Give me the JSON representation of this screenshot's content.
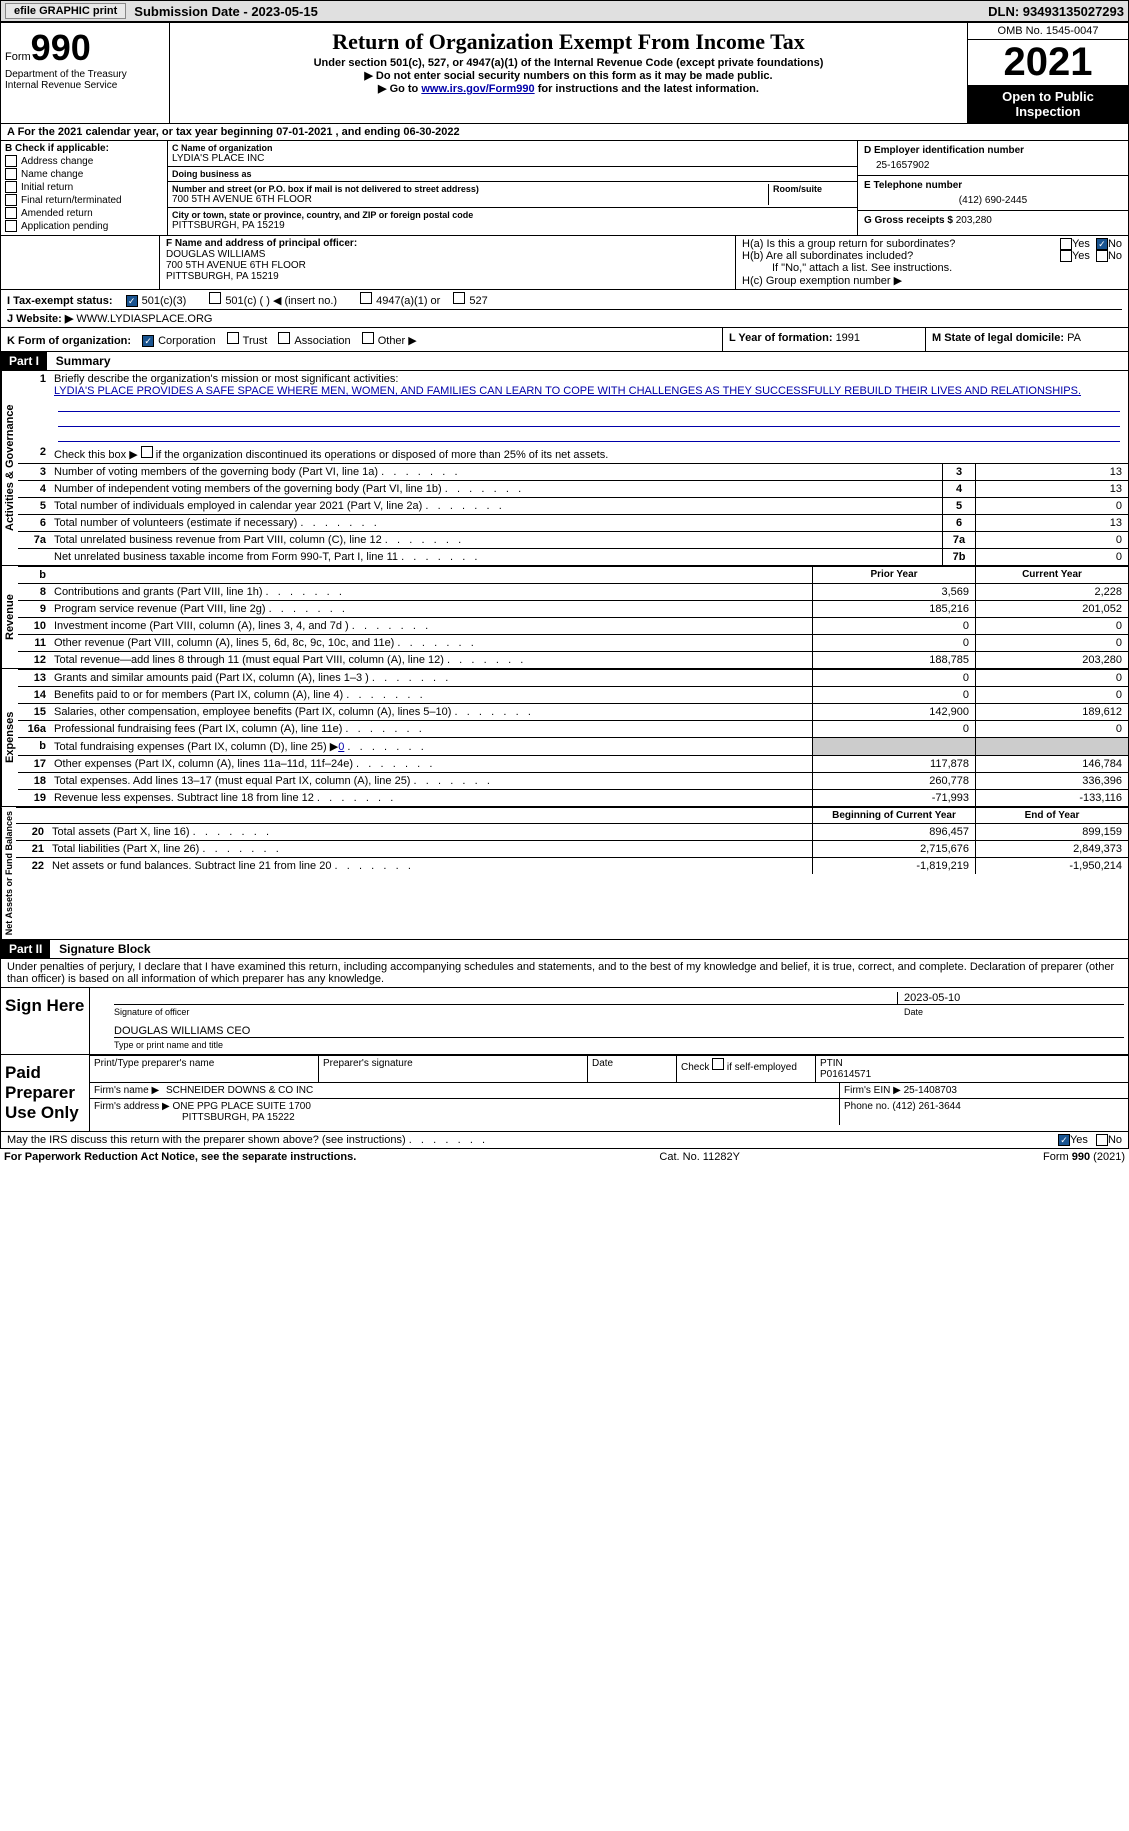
{
  "top": {
    "efile": "efile GRAPHIC print",
    "submission": "Submission Date - 2023-05-15",
    "dln": "DLN: 93493135027293"
  },
  "header": {
    "formWord": "Form",
    "formNum": "990",
    "title": "Return of Organization Exempt From Income Tax",
    "subtitle": "Under section 501(c), 527, or 4947(a)(1) of the Internal Revenue Code (except private foundations)",
    "note1": "▶ Do not enter social security numbers on this form as it may be made public.",
    "note2_pre": "▶ Go to ",
    "note2_link": "www.irs.gov/Form990",
    "note2_post": " for instructions and the latest information.",
    "dept": "Department of the Treasury",
    "irs": "Internal Revenue Service",
    "omb": "OMB No. 1545-0047",
    "year": "2021",
    "openPublic": "Open to Public Inspection"
  },
  "lineA": "A For the 2021 calendar year, or tax year beginning 07-01-2021   , and ending 06-30-2022",
  "sectionB": {
    "label": "B Check if applicable:",
    "items": [
      "Address change",
      "Name change",
      "Initial return",
      "Final return/terminated",
      "Amended return",
      "Application pending"
    ]
  },
  "sectionC": {
    "nameLabel": "C Name of organization",
    "name": "LYDIA'S PLACE INC",
    "dba": "Doing business as",
    "streetLabel": "Number and street (or P.O. box if mail is not delivered to street address)",
    "street": "700 5TH AVENUE 6TH FLOOR",
    "room": "Room/suite",
    "cityLabel": "City or town, state or province, country, and ZIP or foreign postal code",
    "city": "PITTSBURGH, PA  15219"
  },
  "sectionD": {
    "label": "D Employer identification number",
    "value": "25-1657902"
  },
  "sectionE": {
    "label": "E Telephone number",
    "value": "(412) 690-2445"
  },
  "sectionG": {
    "label": "G Gross receipts $ ",
    "value": "203,280"
  },
  "sectionF": {
    "label": "F Name and address of principal officer:",
    "name": "DOUGLAS WILLIAMS",
    "addr1": "700 5TH AVENUE 6TH FLOOR",
    "addr2": "PITTSBURGH, PA  15219"
  },
  "sectionH": {
    "ha": "H(a)  Is this a group return for subordinates?",
    "hb": "H(b)  Are all subordinates included?",
    "hbnote": "If \"No,\" attach a list. See instructions.",
    "hc": "H(c)  Group exemption number ▶",
    "yes": "Yes",
    "no": "No"
  },
  "sectionI": {
    "label": "I  Tax-exempt status:",
    "opt1": "501(c)(3)",
    "opt2": "501(c) (   ) ◀ (insert no.)",
    "opt3": "4947(a)(1) or",
    "opt4": "527"
  },
  "sectionJ": {
    "label": "J  Website: ▶",
    "value": "WWW.LYDIASPLACE.ORG"
  },
  "sectionK": {
    "label": "K Form of organization:",
    "opts": [
      "Corporation",
      "Trust",
      "Association",
      "Other ▶"
    ]
  },
  "sectionL": {
    "label": "L Year of formation: ",
    "value": "1991"
  },
  "sectionM": {
    "label": "M State of legal domicile: ",
    "value": "PA"
  },
  "partI": {
    "part": "Part I",
    "title": "Summary",
    "verticalLabels": [
      "Activities & Governance",
      "Revenue",
      "Expenses",
      "Net Assets or Fund Balances"
    ],
    "line1": "Briefly describe the organization's mission or most significant activities:",
    "mission": "LYDIA'S PLACE PROVIDES A SAFE SPACE WHERE MEN, WOMEN, AND FAMILIES CAN LEARN TO COPE WITH CHALLENGES AS THEY SUCCESSFULLY REBUILD THEIR LIVES AND RELATIONSHIPS.",
    "line2": "Check this box ▶        if the organization discontinued its operations or disposed of more than 25% of its net assets.",
    "governance": [
      {
        "n": "3",
        "t": "Number of voting members of the governing body (Part VI, line 1a)",
        "b": "3",
        "v": "13"
      },
      {
        "n": "4",
        "t": "Number of independent voting members of the governing body (Part VI, line 1b)",
        "b": "4",
        "v": "13"
      },
      {
        "n": "5",
        "t": "Total number of individuals employed in calendar year 2021 (Part V, line 2a)",
        "b": "5",
        "v": "0"
      },
      {
        "n": "6",
        "t": "Total number of volunteers (estimate if necessary)",
        "b": "6",
        "v": "13"
      },
      {
        "n": "7a",
        "t": "Total unrelated business revenue from Part VIII, column (C), line 12",
        "b": "7a",
        "v": "0"
      },
      {
        "n": "",
        "t": "Net unrelated business taxable income from Form 990-T, Part I, line 11",
        "b": "7b",
        "v": "0"
      }
    ],
    "colPrior": "Prior Year",
    "colCurrent": "Current Year",
    "revenue": [
      {
        "n": "8",
        "t": "Contributions and grants (Part VIII, line 1h)",
        "p": "3,569",
        "c": "2,228"
      },
      {
        "n": "9",
        "t": "Program service revenue (Part VIII, line 2g)",
        "p": "185,216",
        "c": "201,052"
      },
      {
        "n": "10",
        "t": "Investment income (Part VIII, column (A), lines 3, 4, and 7d )",
        "p": "0",
        "c": "0"
      },
      {
        "n": "11",
        "t": "Other revenue (Part VIII, column (A), lines 5, 6d, 8c, 9c, 10c, and 11e)",
        "p": "0",
        "c": "0"
      },
      {
        "n": "12",
        "t": "Total revenue—add lines 8 through 11 (must equal Part VIII, column (A), line 12)",
        "p": "188,785",
        "c": "203,280"
      }
    ],
    "expenses": [
      {
        "n": "13",
        "t": "Grants and similar amounts paid (Part IX, column (A), lines 1–3 )",
        "p": "0",
        "c": "0"
      },
      {
        "n": "14",
        "t": "Benefits paid to or for members (Part IX, column (A), line 4)",
        "p": "0",
        "c": "0"
      },
      {
        "n": "15",
        "t": "Salaries, other compensation, employee benefits (Part IX, column (A), lines 5–10)",
        "p": "142,900",
        "c": "189,612"
      },
      {
        "n": "16a",
        "t": "Professional fundraising fees (Part IX, column (A), line 11e)",
        "p": "0",
        "c": "0"
      },
      {
        "n": "b",
        "t": "Total fundraising expenses (Part IX, column (D), line 25) ▶",
        "p": "shaded",
        "c": "shaded",
        "extra": "0"
      },
      {
        "n": "17",
        "t": "Other expenses (Part IX, column (A), lines 11a–11d, 11f–24e)",
        "p": "117,878",
        "c": "146,784"
      },
      {
        "n": "18",
        "t": "Total expenses. Add lines 13–17 (must equal Part IX, column (A), line 25)",
        "p": "260,778",
        "c": "336,396"
      },
      {
        "n": "19",
        "t": "Revenue less expenses. Subtract line 18 from line 12",
        "p": "-71,993",
        "c": "-133,116"
      }
    ],
    "colBegin": "Beginning of Current Year",
    "colEnd": "End of Year",
    "netassets": [
      {
        "n": "20",
        "t": "Total assets (Part X, line 16)",
        "p": "896,457",
        "c": "899,159"
      },
      {
        "n": "21",
        "t": "Total liabilities (Part X, line 26)",
        "p": "2,715,676",
        "c": "2,849,373"
      },
      {
        "n": "22",
        "t": "Net assets or fund balances. Subtract line 21 from line 20",
        "p": "-1,819,219",
        "c": "-1,950,214"
      }
    ]
  },
  "partII": {
    "part": "Part II",
    "title": "Signature Block",
    "declaration": "Under penalties of perjury, I declare that I have examined this return, including accompanying schedules and statements, and to the best of my knowledge and belief, it is true, correct, and complete. Declaration of preparer (other than officer) is based on all information of which preparer has any knowledge.",
    "signHere": "Sign Here",
    "sigOfficer": "Signature of officer",
    "date": "Date",
    "sigDate": "2023-05-10",
    "officerName": "DOUGLAS WILLIAMS  CEO",
    "typeName": "Type or print name and title",
    "paidLabel": "Paid Preparer Use Only",
    "prepName": "Print/Type preparer's name",
    "prepSig": "Preparer's signature",
    "checkSelf": "Check          if self-employed",
    "ptin": "PTIN",
    "ptinVal": "P01614571",
    "firmName": "Firm's name    ▶",
    "firmNameVal": "SCHNEIDER DOWNS & CO INC",
    "firmEIN": "Firm's EIN ▶",
    "firmEINVal": "25-1408703",
    "firmAddr": "Firm's address ▶",
    "firmAddrVal": "ONE PPG PLACE SUITE 1700",
    "firmCity": "PITTSBURGH, PA  15222",
    "phone": "Phone no. ",
    "phoneVal": "(412) 261-3644",
    "mayIRS": "May the IRS discuss this return with the preparer shown above? (see instructions)",
    "yes": "Yes",
    "no": "No"
  },
  "footer": {
    "paperwork": "For Paperwork Reduction Act Notice, see the separate instructions.",
    "cat": "Cat. No. 11282Y",
    "form": "Form 990 (2021)"
  }
}
